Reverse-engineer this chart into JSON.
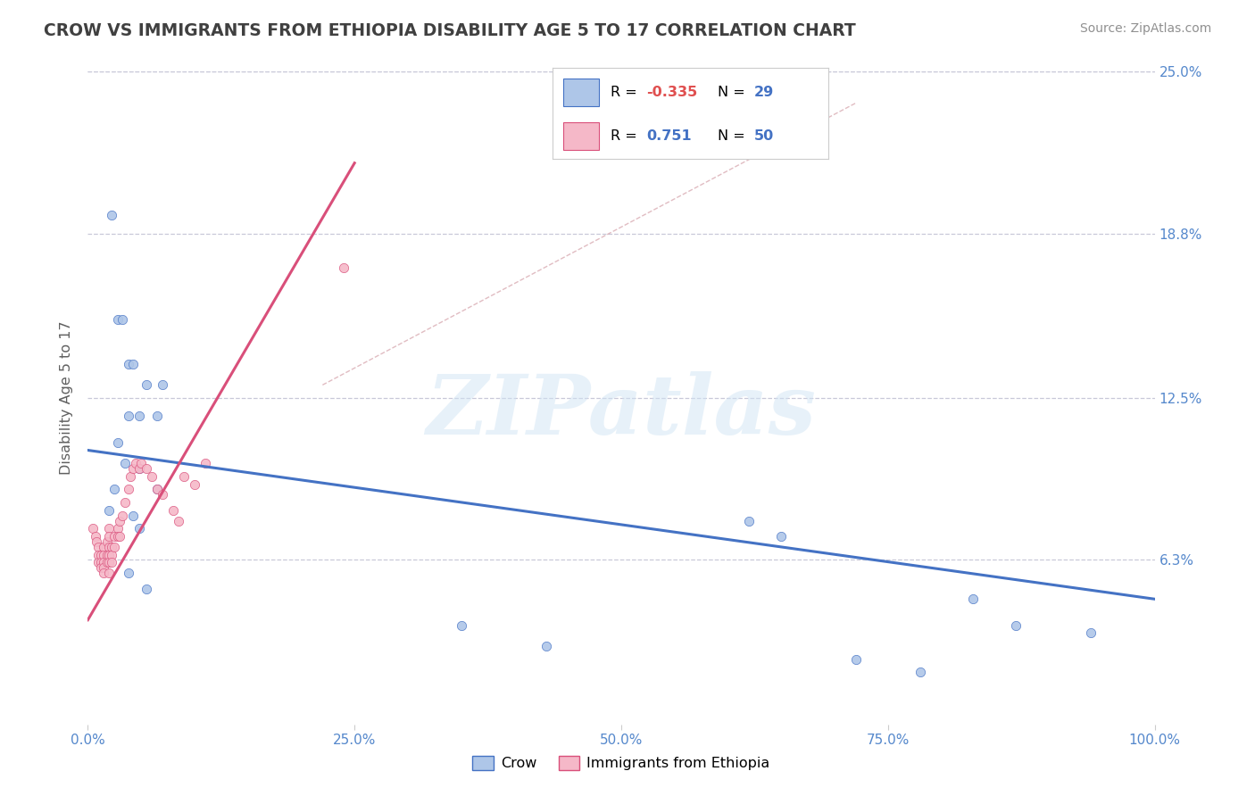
{
  "title": "CROW VS IMMIGRANTS FROM ETHIOPIA DISABILITY AGE 5 TO 17 CORRELATION CHART",
  "source": "Source: ZipAtlas.com",
  "ylabel": "Disability Age 5 to 17",
  "xlim": [
    0,
    1.0
  ],
  "ylim": [
    0,
    0.25
  ],
  "yticks": [
    0.063,
    0.125,
    0.188,
    0.25
  ],
  "ytick_labels": [
    "6.3%",
    "12.5%",
    "18.8%",
    "25.0%"
  ],
  "xticks": [
    0.0,
    0.25,
    0.5,
    0.75,
    1.0
  ],
  "xtick_labels": [
    "0.0%",
    "25.0%",
    "50.0%",
    "75.0%",
    "100.0%"
  ],
  "crow_color": "#aec6e8",
  "ethiopia_color": "#f5b8c8",
  "crow_line_color": "#4472c4",
  "ethiopia_line_color": "#d94f7a",
  "diagonal_color": "#d4a0a8",
  "legend_crow_r": "-0.335",
  "legend_crow_n": "29",
  "legend_ethiopia_r": "0.751",
  "legend_ethiopia_n": "50",
  "crow_scatter": [
    [
      0.022,
      0.195
    ],
    [
      0.028,
      0.155
    ],
    [
      0.032,
      0.155
    ],
    [
      0.038,
      0.138
    ],
    [
      0.042,
      0.138
    ],
    [
      0.055,
      0.13
    ],
    [
      0.07,
      0.13
    ],
    [
      0.038,
      0.118
    ],
    [
      0.048,
      0.118
    ],
    [
      0.065,
      0.118
    ],
    [
      0.028,
      0.108
    ],
    [
      0.035,
      0.1
    ],
    [
      0.048,
      0.098
    ],
    [
      0.025,
      0.09
    ],
    [
      0.065,
      0.09
    ],
    [
      0.02,
      0.082
    ],
    [
      0.042,
      0.08
    ],
    [
      0.048,
      0.075
    ],
    [
      0.038,
      0.058
    ],
    [
      0.055,
      0.052
    ],
    [
      0.35,
      0.038
    ],
    [
      0.43,
      0.03
    ],
    [
      0.62,
      0.078
    ],
    [
      0.65,
      0.072
    ],
    [
      0.83,
      0.048
    ],
    [
      0.87,
      0.038
    ],
    [
      0.94,
      0.035
    ],
    [
      0.72,
      0.025
    ],
    [
      0.78,
      0.02
    ]
  ],
  "ethiopia_scatter": [
    [
      0.005,
      0.075
    ],
    [
      0.007,
      0.072
    ],
    [
      0.008,
      0.07
    ],
    [
      0.01,
      0.068
    ],
    [
      0.01,
      0.065
    ],
    [
      0.01,
      0.062
    ],
    [
      0.012,
      0.065
    ],
    [
      0.012,
      0.062
    ],
    [
      0.012,
      0.06
    ],
    [
      0.015,
      0.068
    ],
    [
      0.015,
      0.065
    ],
    [
      0.015,
      0.062
    ],
    [
      0.015,
      0.06
    ],
    [
      0.015,
      0.058
    ],
    [
      0.018,
      0.07
    ],
    [
      0.018,
      0.065
    ],
    [
      0.018,
      0.062
    ],
    [
      0.02,
      0.075
    ],
    [
      0.02,
      0.072
    ],
    [
      0.02,
      0.068
    ],
    [
      0.02,
      0.065
    ],
    [
      0.02,
      0.062
    ],
    [
      0.02,
      0.058
    ],
    [
      0.022,
      0.068
    ],
    [
      0.022,
      0.065
    ],
    [
      0.022,
      0.062
    ],
    [
      0.025,
      0.072
    ],
    [
      0.025,
      0.068
    ],
    [
      0.028,
      0.075
    ],
    [
      0.028,
      0.072
    ],
    [
      0.03,
      0.078
    ],
    [
      0.03,
      0.072
    ],
    [
      0.032,
      0.08
    ],
    [
      0.035,
      0.085
    ],
    [
      0.038,
      0.09
    ],
    [
      0.04,
      0.095
    ],
    [
      0.042,
      0.098
    ],
    [
      0.045,
      0.1
    ],
    [
      0.048,
      0.098
    ],
    [
      0.05,
      0.1
    ],
    [
      0.055,
      0.098
    ],
    [
      0.06,
      0.095
    ],
    [
      0.065,
      0.09
    ],
    [
      0.07,
      0.088
    ],
    [
      0.08,
      0.082
    ],
    [
      0.085,
      0.078
    ],
    [
      0.09,
      0.095
    ],
    [
      0.1,
      0.092
    ],
    [
      0.11,
      0.1
    ],
    [
      0.24,
      0.175
    ]
  ],
  "crow_line": [
    [
      0.0,
      0.105
    ],
    [
      1.0,
      0.048
    ]
  ],
  "ethiopia_line": [
    [
      0.0,
      0.04
    ],
    [
      0.25,
      0.215
    ]
  ],
  "diagonal_line": [
    [
      0.22,
      0.13
    ],
    [
      0.72,
      0.238
    ]
  ],
  "background_color": "#ffffff",
  "grid_color": "#c8c8d8",
  "title_color": "#404040",
  "axis_label_color": "#606060",
  "tick_color": "#5588cc",
  "source_color": "#909090",
  "watermark_text": "ZIPatlas",
  "watermark_color": "#d0e4f4",
  "watermark_alpha": 0.5
}
